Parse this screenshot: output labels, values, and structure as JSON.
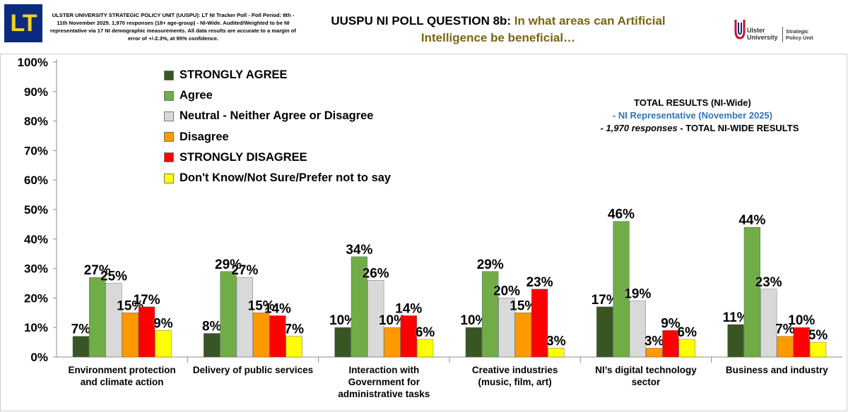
{
  "header": {
    "logo_text": "LT",
    "methodology": "ULSTER UNIVERSITY STRATEGIC POLICY UNIT (UUSPU): LT NI Tracker Poll - Poll Period: 8th - 11th November 2025. 1,970 responses (18+ age-group) - NI-Wide. Audited/Weighted to be NI representative via 17 NI demographic measurements. All data results are accurate to a margin of error of +/-2.3%, at 95% confidence.",
    "title_prefix": "UUSPU NI POLL QUESTION 8b: ",
    "title_question": "In what areas can Artificial Intelligence be beneficial…",
    "uu_logo_line1": "Ulster",
    "uu_logo_line2": "University",
    "uu_logo_line3": "Strategic",
    "uu_logo_line4": "Policy Unit"
  },
  "totals": {
    "line1": "TOTAL RESULTS (NI-Wide)",
    "line2": "- NI Representative (November 2025)",
    "line3_italic": "- 1,970 responses",
    "line3_rest": " - TOTAL NI-WIDE RESULTS"
  },
  "colors": {
    "strongly_agree": "#375623",
    "agree": "#70ad47",
    "neutral": "#d9d9d9",
    "disagree": "#ff9900",
    "strongly_disagree": "#ff0000",
    "dont_know": "#ffff00"
  },
  "chart_data": {
    "type": "bar",
    "title": "UUSPU NI POLL QUESTION 8b: In what areas can Artificial Intelligence be beneficial…",
    "xlabel": "",
    "ylabel": "",
    "ylim": [
      0,
      100
    ],
    "yticks": [
      "0%",
      "10%",
      "20%",
      "30%",
      "40%",
      "50%",
      "60%",
      "70%",
      "80%",
      "90%",
      "100%"
    ],
    "grid": false,
    "legend_position": "top-left",
    "categories": [
      [
        "Environment protection",
        "and climate action"
      ],
      [
        "Delivery of public services"
      ],
      [
        "Interaction with",
        "Government for",
        "administrative tasks"
      ],
      [
        "Creative industries",
        "(music, film, art)"
      ],
      [
        "NI’s digital technology",
        "sector"
      ],
      [
        "Business and industry"
      ]
    ],
    "series": [
      {
        "name": "STRONGLY AGREE",
        "color": "#375623",
        "values": [
          7,
          8,
          10,
          10,
          17,
          11
        ]
      },
      {
        "name": "Agree",
        "color": "#70ad47",
        "values": [
          27,
          29,
          34,
          29,
          46,
          44
        ]
      },
      {
        "name": "Neutral - Neither Agree or Disagree",
        "color": "#d9d9d9",
        "values": [
          25,
          27,
          26,
          20,
          19,
          23
        ]
      },
      {
        "name": "Disagree",
        "color": "#ff9900",
        "values": [
          15,
          15,
          10,
          15,
          3,
          7
        ]
      },
      {
        "name": "STRONGLY DISAGREE",
        "color": "#ff0000",
        "values": [
          17,
          14,
          14,
          23,
          9,
          10
        ]
      },
      {
        "name": "Don't Know/Not Sure/Prefer not to say",
        "color": "#ffff00",
        "values": [
          9,
          7,
          6,
          3,
          6,
          5
        ]
      }
    ]
  }
}
